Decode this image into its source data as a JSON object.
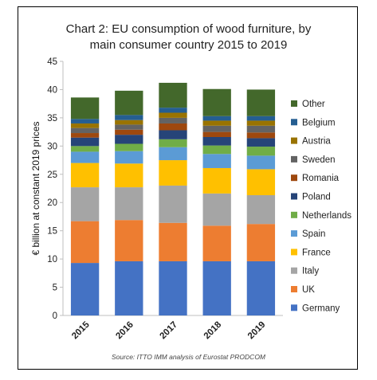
{
  "chart_data": {
    "type": "bar",
    "stacked": true,
    "title_line1": "Chart 2: EU consumption of wood furniture, by",
    "title_line2": "main consumer country 2015 to 2019",
    "ylabel": "€ billion at constant 2019 prices",
    "xlabel": "",
    "ylim": [
      0,
      45
    ],
    "yticks": [
      0,
      5,
      10,
      15,
      20,
      25,
      30,
      35,
      40,
      45
    ],
    "grid": false,
    "legend_position": "right",
    "categories": [
      "2015",
      "2016",
      "2017",
      "2018",
      "2019"
    ],
    "series": [
      {
        "name": "Germany",
        "color": "#4472C4",
        "values": [
          9.3,
          9.6,
          9.6,
          9.6,
          9.6
        ]
      },
      {
        "name": "UK",
        "color": "#ED7D31",
        "values": [
          7.4,
          7.3,
          6.8,
          6.3,
          6.6
        ]
      },
      {
        "name": "Italy",
        "color": "#A5A5A5",
        "values": [
          6.0,
          5.8,
          6.6,
          5.7,
          5.1
        ]
      },
      {
        "name": "France",
        "color": "#FFC000",
        "values": [
          4.3,
          4.2,
          4.5,
          4.5,
          4.6
        ]
      },
      {
        "name": "Spain",
        "color": "#5B9BD5",
        "values": [
          2.0,
          2.2,
          2.3,
          2.5,
          2.4
        ]
      },
      {
        "name": "Netherlands",
        "color": "#70AD47",
        "values": [
          1.0,
          1.3,
          1.4,
          1.5,
          1.6
        ]
      },
      {
        "name": "Poland",
        "color": "#264478",
        "values": [
          1.5,
          1.6,
          1.6,
          1.5,
          1.5
        ]
      },
      {
        "name": "Romania",
        "color": "#9E480E",
        "values": [
          0.8,
          0.9,
          1.2,
          0.9,
          1.0
        ]
      },
      {
        "name": "Sweden",
        "color": "#636363",
        "values": [
          0.9,
          0.9,
          1.0,
          1.1,
          1.2
        ]
      },
      {
        "name": "Austria",
        "color": "#997300",
        "values": [
          0.8,
          0.8,
          0.9,
          0.9,
          0.9
        ]
      },
      {
        "name": "Belgium",
        "color": "#255E91",
        "values": [
          0.8,
          0.9,
          0.9,
          0.8,
          0.8
        ]
      },
      {
        "name": "Other",
        "color": "#43682B",
        "values": [
          3.8,
          4.3,
          4.4,
          4.8,
          4.7
        ]
      }
    ],
    "source": "Source: ITTO IMM analysis of Eurostat PRODCOM"
  }
}
